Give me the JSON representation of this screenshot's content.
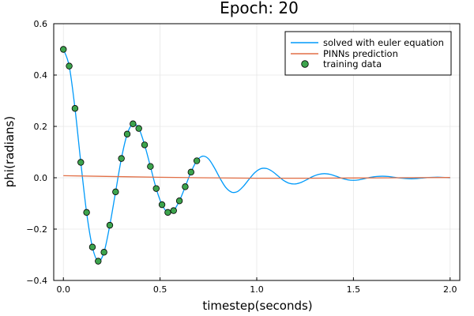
{
  "chart_data": {
    "type": "line",
    "title": "Epoch: 20",
    "xlabel": "timestep(seconds)",
    "ylabel": "phi(radians)",
    "xlim": [
      -0.05,
      2.05
    ],
    "ylim": [
      -0.4,
      0.6
    ],
    "xticks": [
      0.0,
      0.5,
      1.0,
      1.5,
      2.0
    ],
    "xtick_labels": [
      "0.0",
      "0.5",
      "1.0",
      "1.5",
      "2.0"
    ],
    "yticks": [
      -0.4,
      -0.2,
      0.0,
      0.2,
      0.4,
      0.6
    ],
    "ytick_labels": [
      "−0.4",
      "−0.2",
      "0.0",
      "0.2",
      "0.4",
      "0.6"
    ],
    "grid": true,
    "legend_position": "top-right",
    "series": [
      {
        "name": "solved with euler equation",
        "kind": "line",
        "color": "#009AFA",
        "x": [
          0.0,
          0.03,
          0.06,
          0.09,
          0.12,
          0.15,
          0.18,
          0.21,
          0.24,
          0.27,
          0.3,
          0.33,
          0.36,
          0.39,
          0.42,
          0.45,
          0.48,
          0.51,
          0.54,
          0.57,
          0.6,
          0.63,
          0.66,
          0.69,
          0.72,
          0.75,
          0.78,
          0.81,
          0.84,
          0.87,
          0.9,
          0.93,
          0.96,
          0.99,
          1.02,
          1.05,
          1.08,
          1.11,
          1.14,
          1.17,
          1.2,
          1.23,
          1.26,
          1.29,
          1.32,
          1.35,
          1.38,
          1.41,
          1.44,
          1.47,
          1.5,
          1.53,
          1.56,
          1.59,
          1.62,
          1.65,
          1.68,
          1.71,
          1.74,
          1.77,
          1.8,
          1.83,
          1.86,
          1.89,
          1.92,
          1.95,
          1.98,
          2.0
        ],
        "y": [
          0.5,
          0.435,
          0.27,
          0.06,
          -0.135,
          -0.27,
          -0.325,
          -0.29,
          -0.185,
          -0.055,
          0.075,
          0.17,
          0.21,
          0.192,
          0.128,
          0.044,
          -0.042,
          -0.105,
          -0.135,
          -0.128,
          -0.09,
          -0.035,
          0.022,
          0.066,
          0.084,
          0.074,
          0.04,
          -0.002,
          -0.038,
          -0.056,
          -0.054,
          -0.034,
          -0.006,
          0.02,
          0.035,
          0.036,
          0.025,
          0.007,
          -0.011,
          -0.022,
          -0.024,
          -0.018,
          -0.007,
          0.005,
          0.013,
          0.016,
          0.013,
          0.006,
          -0.002,
          -0.008,
          -0.01,
          -0.008,
          -0.003,
          0.002,
          0.005,
          0.006,
          0.005,
          0.002,
          -0.001,
          -0.003,
          -0.004,
          -0.003,
          -0.001,
          0.001,
          0.002,
          0.002,
          0.001,
          0.0
        ]
      },
      {
        "name": "PINNs prediction",
        "kind": "line",
        "color": "#E26F46",
        "x": [
          0.0,
          0.5,
          1.0,
          1.5,
          2.0
        ],
        "y": [
          0.008,
          0.002,
          -0.002,
          -0.001,
          0.001
        ]
      },
      {
        "name": "training data",
        "kind": "scatter",
        "color": "#3DA44D",
        "x": [
          0.0,
          0.03,
          0.06,
          0.09,
          0.12,
          0.15,
          0.18,
          0.21,
          0.24,
          0.27,
          0.3,
          0.33,
          0.36,
          0.39,
          0.42,
          0.45,
          0.48,
          0.51,
          0.54,
          0.57,
          0.6,
          0.63,
          0.66,
          0.69
        ],
        "y": [
          0.5,
          0.435,
          0.27,
          0.06,
          -0.135,
          -0.27,
          -0.325,
          -0.29,
          -0.185,
          -0.055,
          0.075,
          0.17,
          0.21,
          0.192,
          0.128,
          0.044,
          -0.042,
          -0.105,
          -0.135,
          -0.128,
          -0.09,
          -0.035,
          0.022,
          0.066
        ]
      }
    ]
  }
}
